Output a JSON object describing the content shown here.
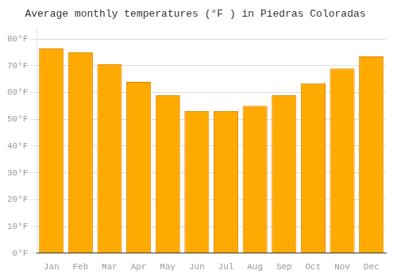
{
  "chart_data": {
    "type": "bar",
    "title": "Average monthly temperatures (°F ) in Piedras Coloradas",
    "categories": [
      "Jan",
      "Feb",
      "Mar",
      "Apr",
      "May",
      "Jun",
      "Jul",
      "Aug",
      "Sep",
      "Oct",
      "Nov",
      "Dec"
    ],
    "values": [
      76.5,
      75.0,
      70.5,
      64.0,
      59.0,
      53.0,
      53.0,
      55.0,
      59.0,
      63.5,
      69.0,
      73.5
    ],
    "color": "#FFAA00",
    "ylim": [
      0,
      84
    ],
    "yticks": [
      {
        "value": 0,
        "label": "0°F"
      },
      {
        "value": 10,
        "label": "10°F"
      },
      {
        "value": 20,
        "label": "20°F"
      },
      {
        "value": 30,
        "label": "30°F"
      },
      {
        "value": 40,
        "label": "40°F"
      },
      {
        "value": 50,
        "label": "50°F"
      },
      {
        "value": 60,
        "label": "60°F"
      },
      {
        "value": 70,
        "label": "70°F"
      },
      {
        "value": 80,
        "label": "80°F"
      }
    ],
    "grid": true
  }
}
